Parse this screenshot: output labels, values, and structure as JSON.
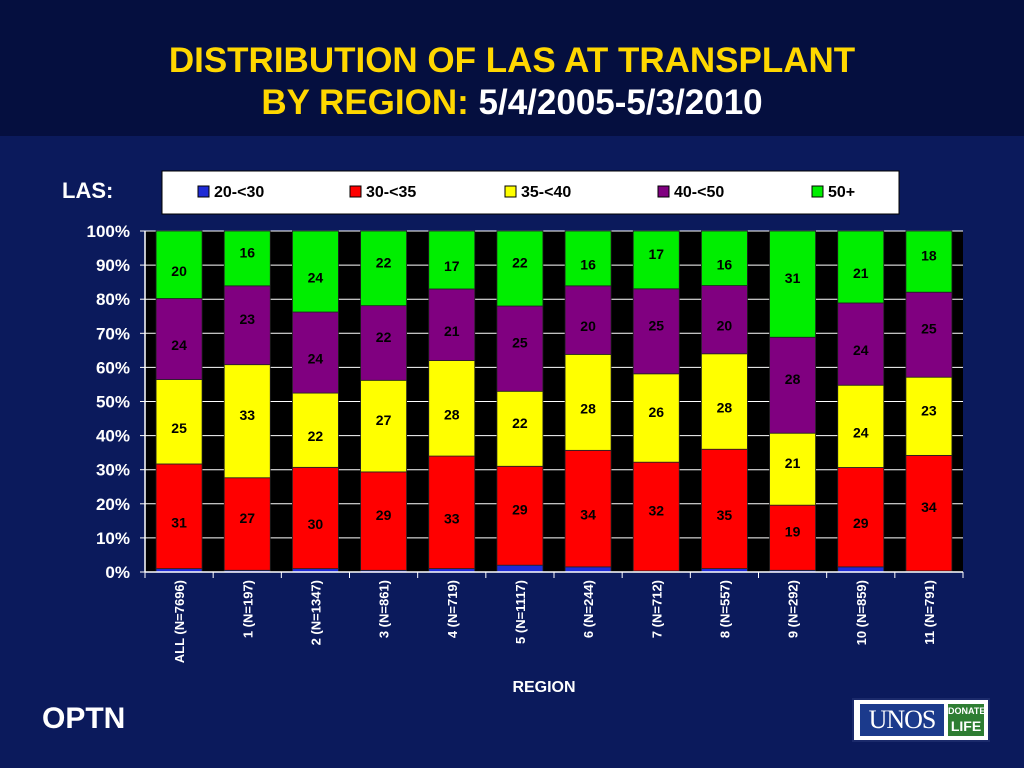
{
  "title": {
    "line1": "DISTRIBUTION OF LAS AT TRANSPLANT",
    "line2": "BY REGION:",
    "date": "5/4/2005-5/3/2010"
  },
  "footer": {
    "optn": "OPTN",
    "logo_text": "UNOS",
    "logo_badge_line1": "DONATE",
    "logo_badge_line2": "LIFE"
  },
  "chart_data": {
    "type": "bar",
    "stacked": true,
    "legend_title": "LAS:",
    "legend_placement": "top",
    "xlabel": "REGION",
    "ylabel": "",
    "ylim": [
      0,
      100
    ],
    "yticks": [
      "0%",
      "10%",
      "20%",
      "30%",
      "40%",
      "50%",
      "60%",
      "70%",
      "80%",
      "90%",
      "100%"
    ],
    "grid": true,
    "categories": [
      "ALL (N=7696)",
      "1 (N=197)",
      "2 (N=1347)",
      "3 (N=861)",
      "4 (N=719)",
      "5 (N=1117)",
      "6 (N=244)",
      "7 (N=712)",
      "8 (N=557)",
      "9 (N=292)",
      "10 (N=859)",
      "11 (N=791)"
    ],
    "series": [
      {
        "name": "20-<30",
        "color": "#1f2bd6",
        "values": [
          1,
          0.5,
          1,
          0.5,
          1,
          2,
          1.5,
          0.3,
          1,
          0.5,
          1.5,
          0.3
        ],
        "labels": [
          "",
          "",
          "",
          "",
          "",
          "",
          "",
          "",
          "",
          "",
          "",
          ""
        ]
      },
      {
        "name": "30-<35",
        "color": "#ff0000",
        "values": [
          31,
          27,
          30,
          29,
          33,
          29,
          34,
          32,
          35,
          19,
          29,
          34
        ],
        "labels": [
          "31",
          "27",
          "30",
          "29",
          "33",
          "29",
          "34",
          "32",
          "35",
          "19",
          "29",
          "34"
        ]
      },
      {
        "name": "35-<40",
        "color": "#ffff00",
        "values": [
          25,
          33,
          22,
          27,
          28,
          22,
          28,
          26,
          28,
          21,
          24,
          23
        ],
        "labels": [
          "25",
          "33",
          "22",
          "27",
          "28",
          "22",
          "28",
          "26",
          "28",
          "21",
          "24",
          "23"
        ]
      },
      {
        "name": "40-<50",
        "color": "#800080",
        "values": [
          24,
          23,
          24,
          22,
          21,
          25,
          20,
          25,
          20,
          28,
          24,
          25
        ],
        "labels": [
          "24",
          "23",
          "24",
          "22",
          "21",
          "25",
          "20",
          "25",
          "20",
          "28",
          "24",
          "25"
        ]
      },
      {
        "name": "50+",
        "color": "#00ee00",
        "values": [
          20,
          16,
          24,
          22,
          17,
          22,
          16,
          17,
          16,
          31,
          21,
          18
        ],
        "labels": [
          "20",
          "16",
          "24",
          "22",
          "17",
          "22",
          "16",
          "17",
          "16",
          "31",
          "21",
          "18"
        ]
      }
    ]
  }
}
